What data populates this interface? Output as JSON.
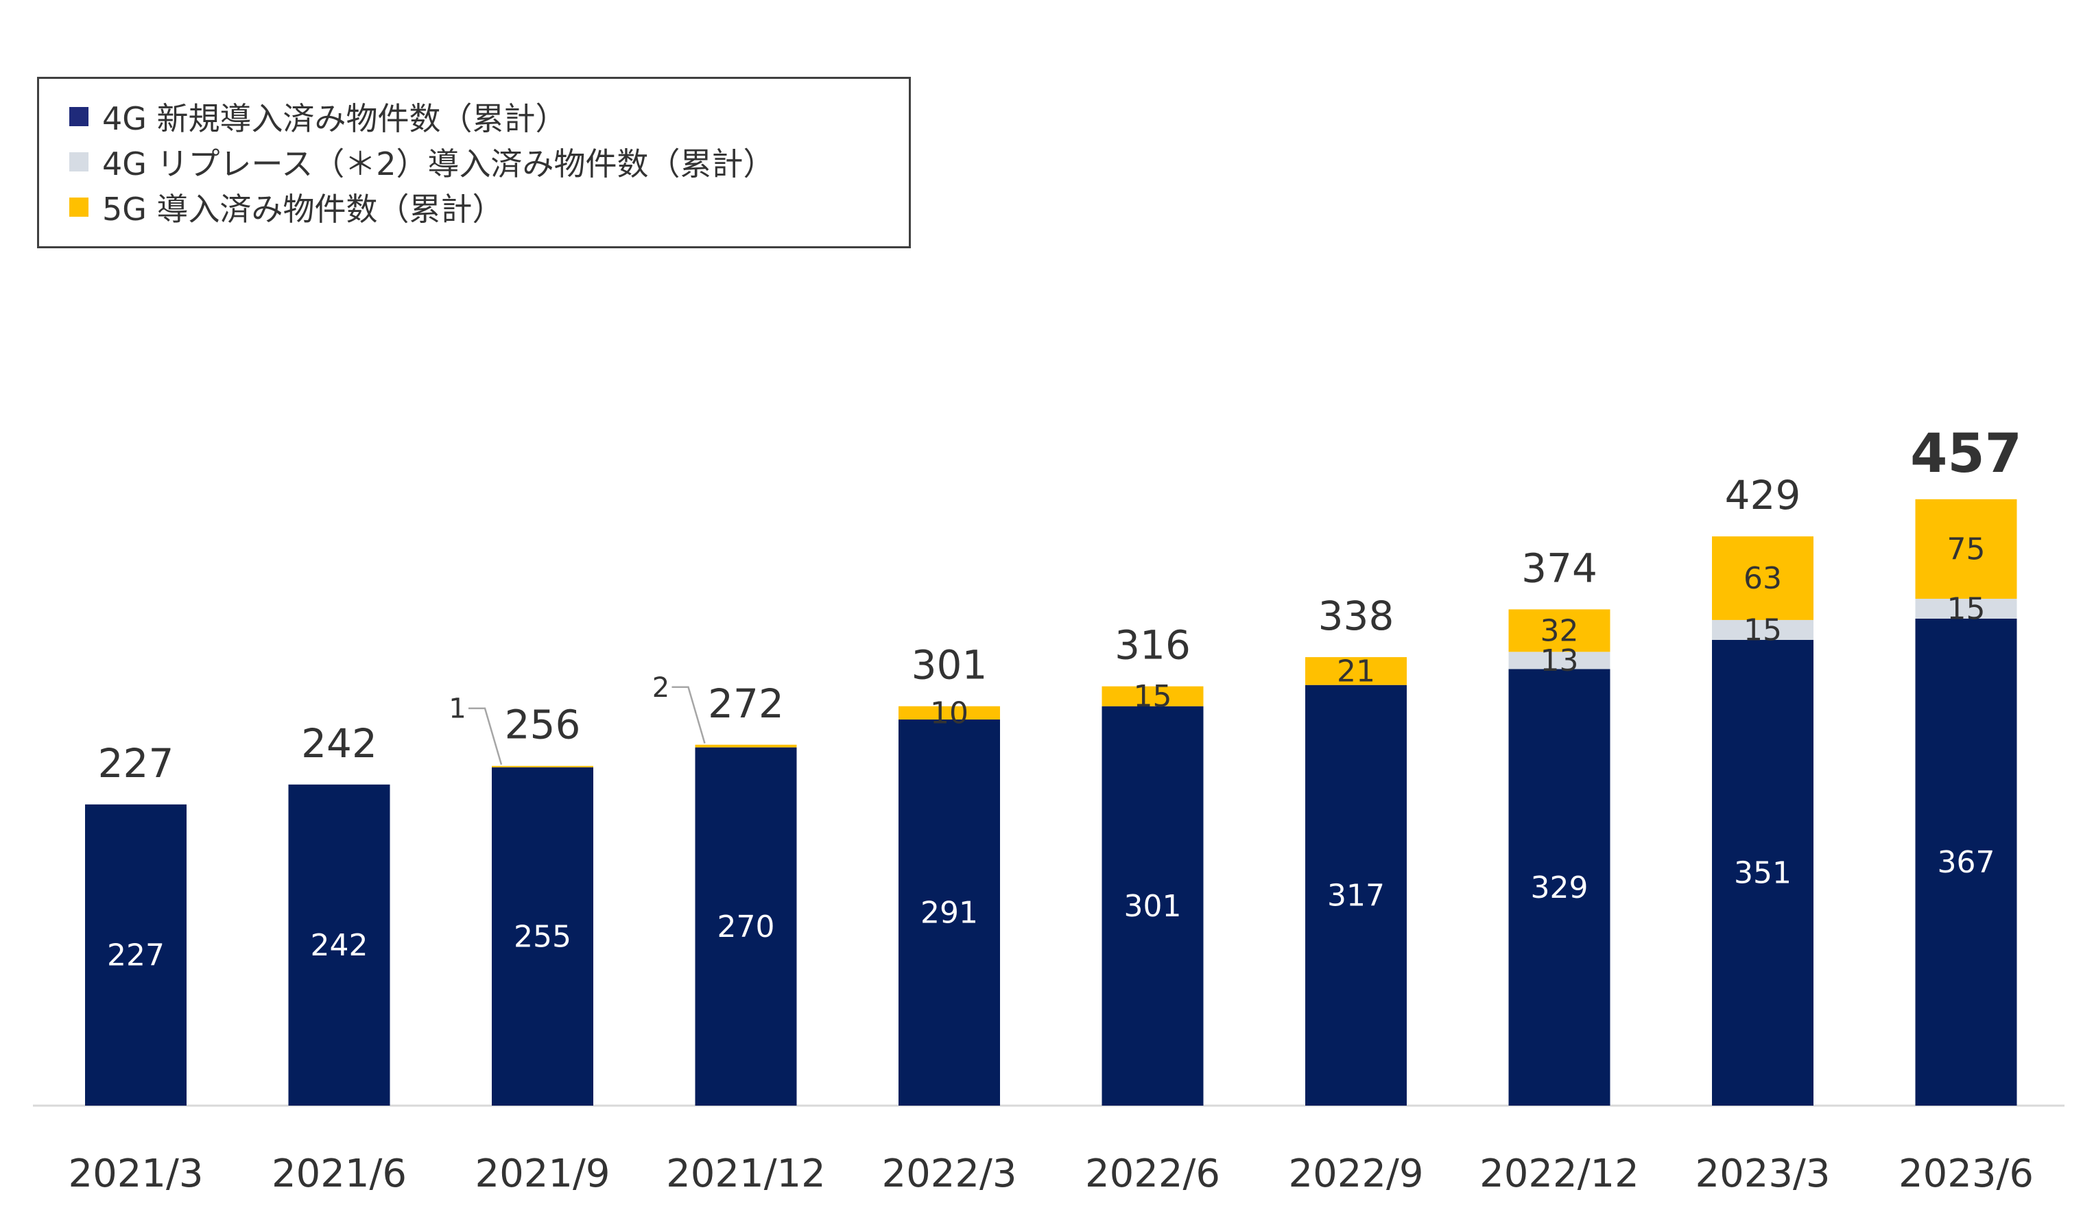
{
  "chart_data": {
    "type": "bar",
    "stacked": true,
    "categories": [
      "2021/3",
      "2021/6",
      "2021/9",
      "2021/12",
      "2022/3",
      "2022/6",
      "2022/9",
      "2022/12",
      "2023/3",
      "2023/6"
    ],
    "series": [
      {
        "name": "4G 新規導入済み物件数（累計）",
        "color": "#041E5C",
        "values": [
          227,
          242,
          255,
          270,
          291,
          301,
          317,
          329,
          351,
          367
        ]
      },
      {
        "name": "4G リプレース（＊2）導入済み物件数（累計）",
        "color": "#D6DCE4",
        "values": [
          0,
          0,
          0,
          0,
          0,
          0,
          0,
          13,
          15,
          15
        ]
      },
      {
        "name": "5G 導入済み物件数（累計）",
        "color": "#FFC000",
        "values": [
          0,
          0,
          1,
          2,
          10,
          15,
          21,
          32,
          63,
          75
        ]
      }
    ],
    "totals": [
      227,
      242,
      256,
      272,
      301,
      316,
      338,
      374,
      429,
      457
    ],
    "callouts": [
      {
        "category_index": 2,
        "label": "1"
      },
      {
        "category_index": 3,
        "label": "2"
      }
    ],
    "ylim": [
      0,
      470
    ],
    "xlabel": "",
    "ylabel": "",
    "grid": false,
    "legend_position": "top-left"
  },
  "legend": {
    "items": [
      {
        "label": "4G 新規導入済み物件数（累計）",
        "color": "#1F2A7A"
      },
      {
        "label": "4G リプレース（＊2）導入済み物件数（累計）",
        "color": "#D6DCE4"
      },
      {
        "label": "5G 導入済み物件数（累計）",
        "color": "#FFC000"
      }
    ]
  },
  "colors": {
    "axis": "#D9D9D9",
    "label_dark": "#333333",
    "label_light": "#FFFFFF",
    "callout_line": "#A6A6A6"
  }
}
